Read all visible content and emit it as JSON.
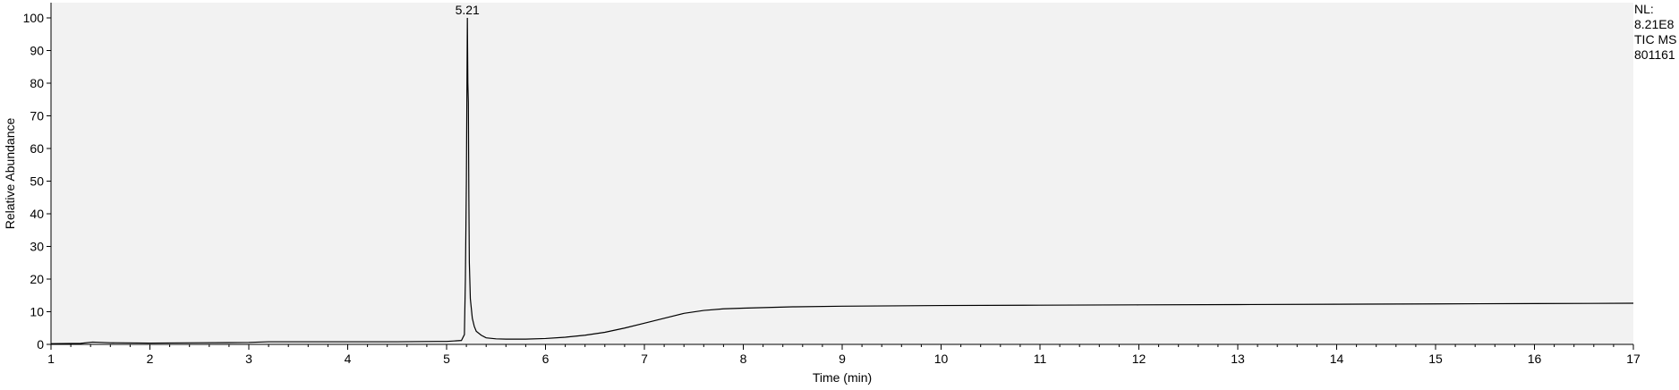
{
  "side_info": {
    "nl_label": "NL:",
    "nl_value": "8.21E8",
    "filter": "TIC  MS",
    "sample": "801161"
  },
  "colors": {
    "plot_background": "#f2f2f2",
    "trace": "#000000",
    "axis": "#000000"
  },
  "chart_data": {
    "type": "line",
    "xlabel": "Time (min)",
    "ylabel": "Relative Abundance",
    "xlim": [
      1,
      17
    ],
    "ylim": [
      0,
      100
    ],
    "x_ticks": [
      1,
      2,
      3,
      4,
      5,
      6,
      7,
      8,
      9,
      10,
      11,
      12,
      13,
      14,
      15,
      16,
      17
    ],
    "y_ticks": [
      0,
      10,
      20,
      30,
      40,
      50,
      60,
      70,
      80,
      90,
      100
    ],
    "grid": false,
    "annotations": [
      {
        "x": 5.21,
        "y": 100,
        "text": "5.21"
      }
    ],
    "series": [
      {
        "x": [
          1.0,
          1.3,
          1.42,
          1.6,
          2.0,
          2.5,
          3.0,
          3.2,
          3.6,
          4.0,
          4.5,
          4.9,
          5.0,
          5.15,
          5.18,
          5.19,
          5.2,
          5.21,
          5.215,
          5.22,
          5.225,
          5.23,
          5.24,
          5.26,
          5.28,
          5.3,
          5.35,
          5.4,
          5.5,
          5.6,
          5.8,
          6.0,
          6.2,
          6.4,
          6.6,
          6.8,
          7.0,
          7.2,
          7.4,
          7.6,
          7.8,
          8.0,
          8.5,
          9.0,
          10.0,
          11.0,
          12.0,
          13.0,
          14.0,
          15.0,
          16.0,
          17.0
        ],
        "y": [
          0.2,
          0.3,
          0.7,
          0.5,
          0.4,
          0.5,
          0.6,
          0.8,
          0.8,
          0.8,
          0.8,
          0.9,
          0.9,
          1.2,
          3,
          20,
          50,
          100,
          80,
          74,
          45,
          25,
          14,
          8,
          5.5,
          4,
          2.8,
          2.0,
          1.7,
          1.6,
          1.6,
          1.8,
          2.2,
          2.8,
          3.7,
          5.0,
          6.5,
          8.0,
          9.5,
          10.4,
          10.9,
          11.1,
          11.5,
          11.7,
          11.9,
          12.0,
          12.1,
          12.2,
          12.3,
          12.4,
          12.5,
          12.6
        ]
      }
    ]
  }
}
